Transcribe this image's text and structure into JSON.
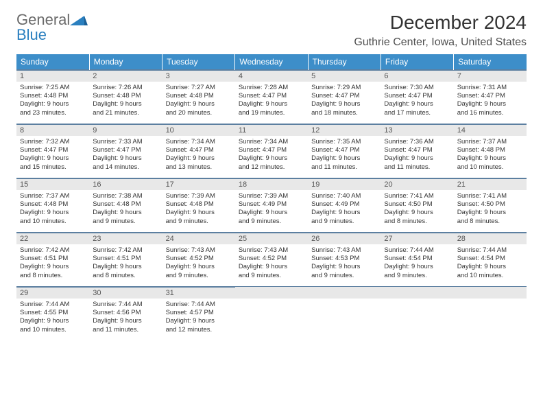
{
  "logo": {
    "top": "General",
    "bottom": "Blue",
    "tri_color": "#2a7fbf",
    "gray": "#6a6a6a"
  },
  "title": "December 2024",
  "location": "Guthrie Center, Iowa, United States",
  "colors": {
    "header_bg": "#3d8ec9",
    "header_text": "#ffffff",
    "daynum_bg": "#e8e8e8",
    "daynum_text": "#565656",
    "body_text": "#333333",
    "rule": "#5c7fa0"
  },
  "dow": [
    "Sunday",
    "Monday",
    "Tuesday",
    "Wednesday",
    "Thursday",
    "Friday",
    "Saturday"
  ],
  "weeks": [
    [
      {
        "n": "1",
        "sr": "Sunrise: 7:25 AM",
        "ss": "Sunset: 4:48 PM",
        "d1": "Daylight: 9 hours",
        "d2": "and 23 minutes."
      },
      {
        "n": "2",
        "sr": "Sunrise: 7:26 AM",
        "ss": "Sunset: 4:48 PM",
        "d1": "Daylight: 9 hours",
        "d2": "and 21 minutes."
      },
      {
        "n": "3",
        "sr": "Sunrise: 7:27 AM",
        "ss": "Sunset: 4:48 PM",
        "d1": "Daylight: 9 hours",
        "d2": "and 20 minutes."
      },
      {
        "n": "4",
        "sr": "Sunrise: 7:28 AM",
        "ss": "Sunset: 4:47 PM",
        "d1": "Daylight: 9 hours",
        "d2": "and 19 minutes."
      },
      {
        "n": "5",
        "sr": "Sunrise: 7:29 AM",
        "ss": "Sunset: 4:47 PM",
        "d1": "Daylight: 9 hours",
        "d2": "and 18 minutes."
      },
      {
        "n": "6",
        "sr": "Sunrise: 7:30 AM",
        "ss": "Sunset: 4:47 PM",
        "d1": "Daylight: 9 hours",
        "d2": "and 17 minutes."
      },
      {
        "n": "7",
        "sr": "Sunrise: 7:31 AM",
        "ss": "Sunset: 4:47 PM",
        "d1": "Daylight: 9 hours",
        "d2": "and 16 minutes."
      }
    ],
    [
      {
        "n": "8",
        "sr": "Sunrise: 7:32 AM",
        "ss": "Sunset: 4:47 PM",
        "d1": "Daylight: 9 hours",
        "d2": "and 15 minutes."
      },
      {
        "n": "9",
        "sr": "Sunrise: 7:33 AM",
        "ss": "Sunset: 4:47 PM",
        "d1": "Daylight: 9 hours",
        "d2": "and 14 minutes."
      },
      {
        "n": "10",
        "sr": "Sunrise: 7:34 AM",
        "ss": "Sunset: 4:47 PM",
        "d1": "Daylight: 9 hours",
        "d2": "and 13 minutes."
      },
      {
        "n": "11",
        "sr": "Sunrise: 7:34 AM",
        "ss": "Sunset: 4:47 PM",
        "d1": "Daylight: 9 hours",
        "d2": "and 12 minutes."
      },
      {
        "n": "12",
        "sr": "Sunrise: 7:35 AM",
        "ss": "Sunset: 4:47 PM",
        "d1": "Daylight: 9 hours",
        "d2": "and 11 minutes."
      },
      {
        "n": "13",
        "sr": "Sunrise: 7:36 AM",
        "ss": "Sunset: 4:47 PM",
        "d1": "Daylight: 9 hours",
        "d2": "and 11 minutes."
      },
      {
        "n": "14",
        "sr": "Sunrise: 7:37 AM",
        "ss": "Sunset: 4:48 PM",
        "d1": "Daylight: 9 hours",
        "d2": "and 10 minutes."
      }
    ],
    [
      {
        "n": "15",
        "sr": "Sunrise: 7:37 AM",
        "ss": "Sunset: 4:48 PM",
        "d1": "Daylight: 9 hours",
        "d2": "and 10 minutes."
      },
      {
        "n": "16",
        "sr": "Sunrise: 7:38 AM",
        "ss": "Sunset: 4:48 PM",
        "d1": "Daylight: 9 hours",
        "d2": "and 9 minutes."
      },
      {
        "n": "17",
        "sr": "Sunrise: 7:39 AM",
        "ss": "Sunset: 4:48 PM",
        "d1": "Daylight: 9 hours",
        "d2": "and 9 minutes."
      },
      {
        "n": "18",
        "sr": "Sunrise: 7:39 AM",
        "ss": "Sunset: 4:49 PM",
        "d1": "Daylight: 9 hours",
        "d2": "and 9 minutes."
      },
      {
        "n": "19",
        "sr": "Sunrise: 7:40 AM",
        "ss": "Sunset: 4:49 PM",
        "d1": "Daylight: 9 hours",
        "d2": "and 9 minutes."
      },
      {
        "n": "20",
        "sr": "Sunrise: 7:41 AM",
        "ss": "Sunset: 4:50 PM",
        "d1": "Daylight: 9 hours",
        "d2": "and 8 minutes."
      },
      {
        "n": "21",
        "sr": "Sunrise: 7:41 AM",
        "ss": "Sunset: 4:50 PM",
        "d1": "Daylight: 9 hours",
        "d2": "and 8 minutes."
      }
    ],
    [
      {
        "n": "22",
        "sr": "Sunrise: 7:42 AM",
        "ss": "Sunset: 4:51 PM",
        "d1": "Daylight: 9 hours",
        "d2": "and 8 minutes."
      },
      {
        "n": "23",
        "sr": "Sunrise: 7:42 AM",
        "ss": "Sunset: 4:51 PM",
        "d1": "Daylight: 9 hours",
        "d2": "and 8 minutes."
      },
      {
        "n": "24",
        "sr": "Sunrise: 7:43 AM",
        "ss": "Sunset: 4:52 PM",
        "d1": "Daylight: 9 hours",
        "d2": "and 9 minutes."
      },
      {
        "n": "25",
        "sr": "Sunrise: 7:43 AM",
        "ss": "Sunset: 4:52 PM",
        "d1": "Daylight: 9 hours",
        "d2": "and 9 minutes."
      },
      {
        "n": "26",
        "sr": "Sunrise: 7:43 AM",
        "ss": "Sunset: 4:53 PM",
        "d1": "Daylight: 9 hours",
        "d2": "and 9 minutes."
      },
      {
        "n": "27",
        "sr": "Sunrise: 7:44 AM",
        "ss": "Sunset: 4:54 PM",
        "d1": "Daylight: 9 hours",
        "d2": "and 9 minutes."
      },
      {
        "n": "28",
        "sr": "Sunrise: 7:44 AM",
        "ss": "Sunset: 4:54 PM",
        "d1": "Daylight: 9 hours",
        "d2": "and 10 minutes."
      }
    ],
    [
      {
        "n": "29",
        "sr": "Sunrise: 7:44 AM",
        "ss": "Sunset: 4:55 PM",
        "d1": "Daylight: 9 hours",
        "d2": "and 10 minutes."
      },
      {
        "n": "30",
        "sr": "Sunrise: 7:44 AM",
        "ss": "Sunset: 4:56 PM",
        "d1": "Daylight: 9 hours",
        "d2": "and 11 minutes."
      },
      {
        "n": "31",
        "sr": "Sunrise: 7:44 AM",
        "ss": "Sunset: 4:57 PM",
        "d1": "Daylight: 9 hours",
        "d2": "and 12 minutes."
      },
      null,
      null,
      null,
      null
    ]
  ]
}
